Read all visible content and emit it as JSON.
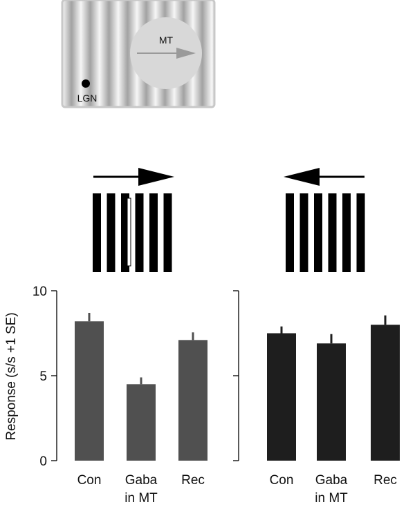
{
  "stimulus": {
    "mt_label": "MT",
    "lgn_label": "LGN"
  },
  "chart_data": {
    "type": "bar",
    "ylabel": "Response (s/s +1 SE)",
    "ylim": [
      0,
      10
    ],
    "yticks": [
      0,
      5,
      10
    ],
    "panels": [
      {
        "direction": "right",
        "categories": [
          [
            "Con"
          ],
          [
            "Gaba",
            "in MT"
          ],
          [
            "Rec"
          ]
        ],
        "values": [
          8.2,
          4.5,
          7.1
        ],
        "errors": [
          0.5,
          0.4,
          0.45
        ],
        "color": "#505050"
      },
      {
        "direction": "left",
        "categories": [
          [
            "Con"
          ],
          [
            "Gaba",
            "in MT"
          ],
          [
            "Rec"
          ]
        ],
        "values": [
          7.5,
          6.9,
          8.0
        ],
        "errors": [
          0.4,
          0.55,
          0.55
        ],
        "color": "#1e1e1e"
      }
    ]
  }
}
